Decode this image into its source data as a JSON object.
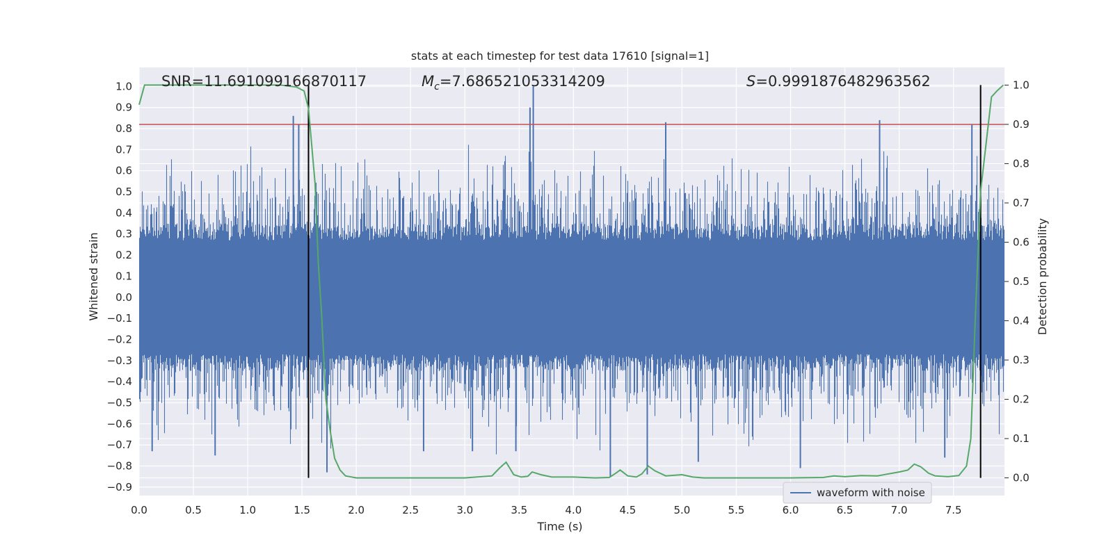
{
  "chart_data": {
    "type": "line",
    "title": "stats at each timestep for test data 17610 [signal=1]",
    "xlabel": "Time (s)",
    "ylabel": "Whitened strain",
    "y2label": "Detection probability",
    "xlim": [
      0.0,
      7.97
    ],
    "ylim": [
      -0.94,
      1.09
    ],
    "y2lim": [
      -0.045,
      1.045
    ],
    "xticks": [
      0.0,
      0.5,
      1.0,
      1.5,
      2.0,
      2.5,
      3.0,
      3.5,
      4.0,
      4.5,
      5.0,
      5.5,
      6.0,
      6.5,
      7.0,
      7.5
    ],
    "yticks": [
      1.0,
      0.9,
      0.8,
      0.7,
      0.6,
      0.5,
      0.4,
      0.3,
      0.2,
      0.1,
      0.0,
      -0.1,
      -0.2,
      -0.3,
      -0.4,
      -0.5,
      -0.6,
      -0.7,
      -0.8,
      -0.9
    ],
    "y2ticks": [
      1.0,
      0.9,
      0.8,
      0.7,
      0.6,
      0.5,
      0.4,
      0.3,
      0.2,
      0.1,
      0.0
    ],
    "grid": true,
    "legend": {
      "position": "lower-right",
      "entries": [
        "waveform with noise"
      ]
    },
    "annotations": {
      "snr_label": "SNR",
      "snr_value": "11.691099166870117",
      "mc_symbol": "M",
      "mc_subscript": "c",
      "mc_value": "7.686521053314209",
      "s_symbol": "S",
      "s_value": "0.9991876482963562"
    },
    "threshold": {
      "y2": 0.9,
      "color": "#c44e52"
    },
    "vlines": [
      1.56,
      7.75
    ],
    "series": [
      {
        "name": "waveform with noise",
        "axis": "left",
        "color": "#4c72b0",
        "description": "noise band roughly ±0.3, spikes to ±0.7",
        "spikes": [
          [
            1.42,
            0.86
          ],
          [
            1.47,
            0.82
          ],
          [
            3.6,
            0.9
          ],
          [
            3.63,
            1.0
          ],
          [
            4.85,
            0.83
          ],
          [
            6.82,
            0.84
          ],
          [
            7.67,
            0.82
          ],
          [
            4.34,
            -0.85
          ],
          [
            4.68,
            -0.84
          ],
          [
            6.09,
            -0.81
          ],
          [
            3.07,
            -0.73
          ],
          [
            3.47,
            -0.73
          ],
          [
            1.73,
            -0.83
          ],
          [
            5.15,
            -0.78
          ],
          [
            7.42,
            -0.76
          ],
          [
            0.7,
            -0.75
          ],
          [
            0.12,
            -0.73
          ],
          [
            2.62,
            -0.73
          ]
        ]
      },
      {
        "name": "detection probability",
        "axis": "right",
        "color": "#55a868",
        "points": [
          [
            0.0,
            0.95
          ],
          [
            0.05,
            1.0
          ],
          [
            0.5,
            1.0
          ],
          [
            1.0,
            1.0
          ],
          [
            1.3,
            1.0
          ],
          [
            1.45,
            0.995
          ],
          [
            1.52,
            0.985
          ],
          [
            1.56,
            0.94
          ],
          [
            1.62,
            0.75
          ],
          [
            1.65,
            0.55
          ],
          [
            1.68,
            0.42
          ],
          [
            1.72,
            0.2
          ],
          [
            1.76,
            0.12
          ],
          [
            1.8,
            0.05
          ],
          [
            1.85,
            0.02
          ],
          [
            1.9,
            0.005
          ],
          [
            2.0,
            0.0
          ],
          [
            2.5,
            0.0
          ],
          [
            3.0,
            0.0
          ],
          [
            3.25,
            0.005
          ],
          [
            3.32,
            0.025
          ],
          [
            3.38,
            0.04
          ],
          [
            3.45,
            0.008
          ],
          [
            3.52,
            0.002
          ],
          [
            3.58,
            0.004
          ],
          [
            3.62,
            0.015
          ],
          [
            3.7,
            0.008
          ],
          [
            3.8,
            0.002
          ],
          [
            4.0,
            0.002
          ],
          [
            4.2,
            0.0
          ],
          [
            4.33,
            0.001
          ],
          [
            4.38,
            0.01
          ],
          [
            4.43,
            0.02
          ],
          [
            4.5,
            0.005
          ],
          [
            4.58,
            0.002
          ],
          [
            4.63,
            0.01
          ],
          [
            4.69,
            0.03
          ],
          [
            4.75,
            0.018
          ],
          [
            4.85,
            0.005
          ],
          [
            5.0,
            0.008
          ],
          [
            5.1,
            0.002
          ],
          [
            5.2,
            0.0
          ],
          [
            6.0,
            0.0
          ],
          [
            6.3,
            0.001
          ],
          [
            6.4,
            0.005
          ],
          [
            6.5,
            0.003
          ],
          [
            6.65,
            0.006
          ],
          [
            6.8,
            0.005
          ],
          [
            7.0,
            0.015
          ],
          [
            7.08,
            0.02
          ],
          [
            7.14,
            0.035
          ],
          [
            7.2,
            0.028
          ],
          [
            7.27,
            0.012
          ],
          [
            7.33,
            0.005
          ],
          [
            7.45,
            0.003
          ],
          [
            7.55,
            0.006
          ],
          [
            7.62,
            0.03
          ],
          [
            7.66,
            0.1
          ],
          [
            7.7,
            0.4
          ],
          [
            7.75,
            0.73
          ],
          [
            7.8,
            0.85
          ],
          [
            7.85,
            0.97
          ],
          [
            7.9,
            0.985
          ],
          [
            7.96,
            1.0
          ]
        ]
      }
    ]
  }
}
